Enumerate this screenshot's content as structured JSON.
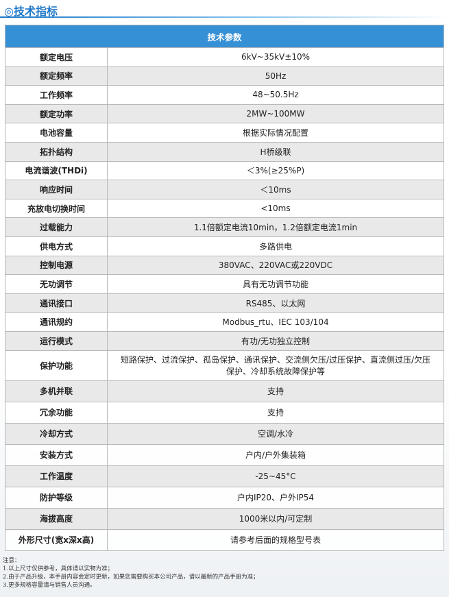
{
  "header": {
    "title": "◎技术指标"
  },
  "table": {
    "header": "技术参数",
    "rows": [
      [
        "额定电压",
        "6kV~35kV±10%"
      ],
      [
        "额定频率",
        "50Hz"
      ],
      [
        "工作频率",
        "48~50.5Hz"
      ],
      [
        "额定功率",
        "2MW~100MW"
      ],
      [
        "电池容量",
        "根据实际情况配置"
      ],
      [
        "拓扑结构",
        "H桥级联"
      ],
      [
        "电流谐波(THDi)",
        "＜3%(≥25%P)"
      ],
      [
        "响应时间",
        "＜10ms"
      ],
      [
        "充放电切换时间",
        "<10ms"
      ],
      [
        "过载能力",
        "1.1倍额定电流10min，1.2倍额定电流1min"
      ],
      [
        "供电方式",
        "多路供电"
      ],
      [
        "控制电源",
        "380VAC、220VAC或220VDC"
      ],
      [
        "无功调节",
        "具有无功调节功能"
      ],
      [
        "通讯接口",
        "RS485、以太网"
      ],
      [
        "通讯规约",
        "Modbus_rtu、IEC 103/104"
      ],
      [
        "运行模式",
        "有功/无功独立控制"
      ],
      [
        "保护功能",
        "短路保护、过流保护、孤岛保护、通讯保护、交流侧欠压/过压保护、直流侧过压/欠压保护、冷却系统故障保护等"
      ],
      [
        "多机并联",
        "支持"
      ],
      [
        "冗余功能",
        "支持"
      ],
      [
        "冷却方式",
        "空调/水冷"
      ],
      [
        "安装方式",
        "户内/户外集装箱"
      ],
      [
        "工作温度",
        "-25~45°C"
      ],
      [
        "防护等级",
        "户内IP20、户外IP54"
      ],
      [
        "海拔高度",
        "1000米以内/可定制"
      ],
      [
        "外形尺寸(宽x深x高)",
        "请参考后面的规格型号表"
      ]
    ]
  },
  "notes": {
    "title": "注意：",
    "items": [
      "1.以上尺寸仅供参考，具体请以实物为准；",
      "2.由于产品升级，本手册内容会定时更新，如果您需要购买本公司产品，请以最新的产品手册为准；",
      "3.更多规格容量请与销售人员沟通。"
    ]
  }
}
